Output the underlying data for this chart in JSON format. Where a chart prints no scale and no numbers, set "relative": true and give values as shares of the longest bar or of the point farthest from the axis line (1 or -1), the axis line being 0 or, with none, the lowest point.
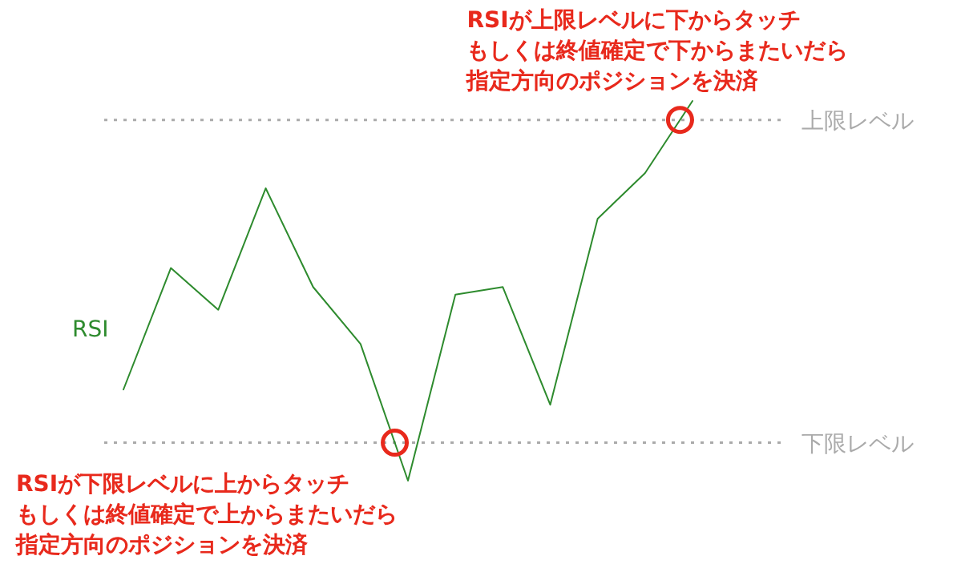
{
  "chart_data": {
    "type": "line",
    "relative": true,
    "categories": [
      null,
      null,
      null,
      null,
      null,
      null,
      null,
      null,
      null,
      null,
      null,
      null,
      null
    ],
    "series": [
      {
        "name": "RSI",
        "color": "#2e8b2e",
        "values": [
          0.24,
          0.56,
          0.45,
          0.77,
          0.51,
          0.36,
          0,
          0.49,
          0.51,
          0.2,
          0.69,
          0.81,
          1
        ]
      }
    ],
    "ref_lines": [
      {
        "axis": "y",
        "value": 0.95,
        "label": "上限レベル",
        "color": "#aaaaaa",
        "line_style": "dotted"
      },
      {
        "axis": "y",
        "value": 0.1,
        "label": "下限レベル",
        "color": "#aaaaaa",
        "line_style": "dotted"
      }
    ],
    "annotations": [
      "RSIが上限レベルに下からタッチ",
      "もしくは終値確定で下からまたいだら",
      "指定方向のポジションを決済",
      "RSIが下限レベルに上からタッチ",
      "もしくは終値確定で上からまたいだら",
      "指定方向のポジションを決済"
    ]
  }
}
